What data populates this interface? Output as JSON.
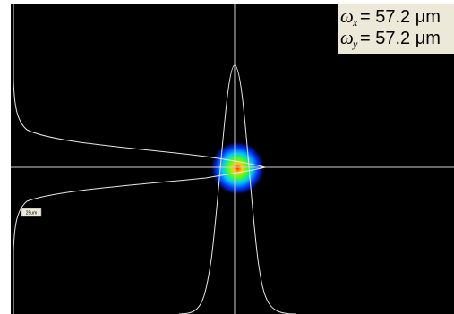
{
  "readout": {
    "rows": [
      {
        "symbol": "ω",
        "subscript": "x",
        "text": "= 57.2 μm"
      },
      {
        "symbol": "ω",
        "subscript": "y",
        "text": "= 57.2 μm"
      }
    ]
  },
  "scale_label": "25um"
}
